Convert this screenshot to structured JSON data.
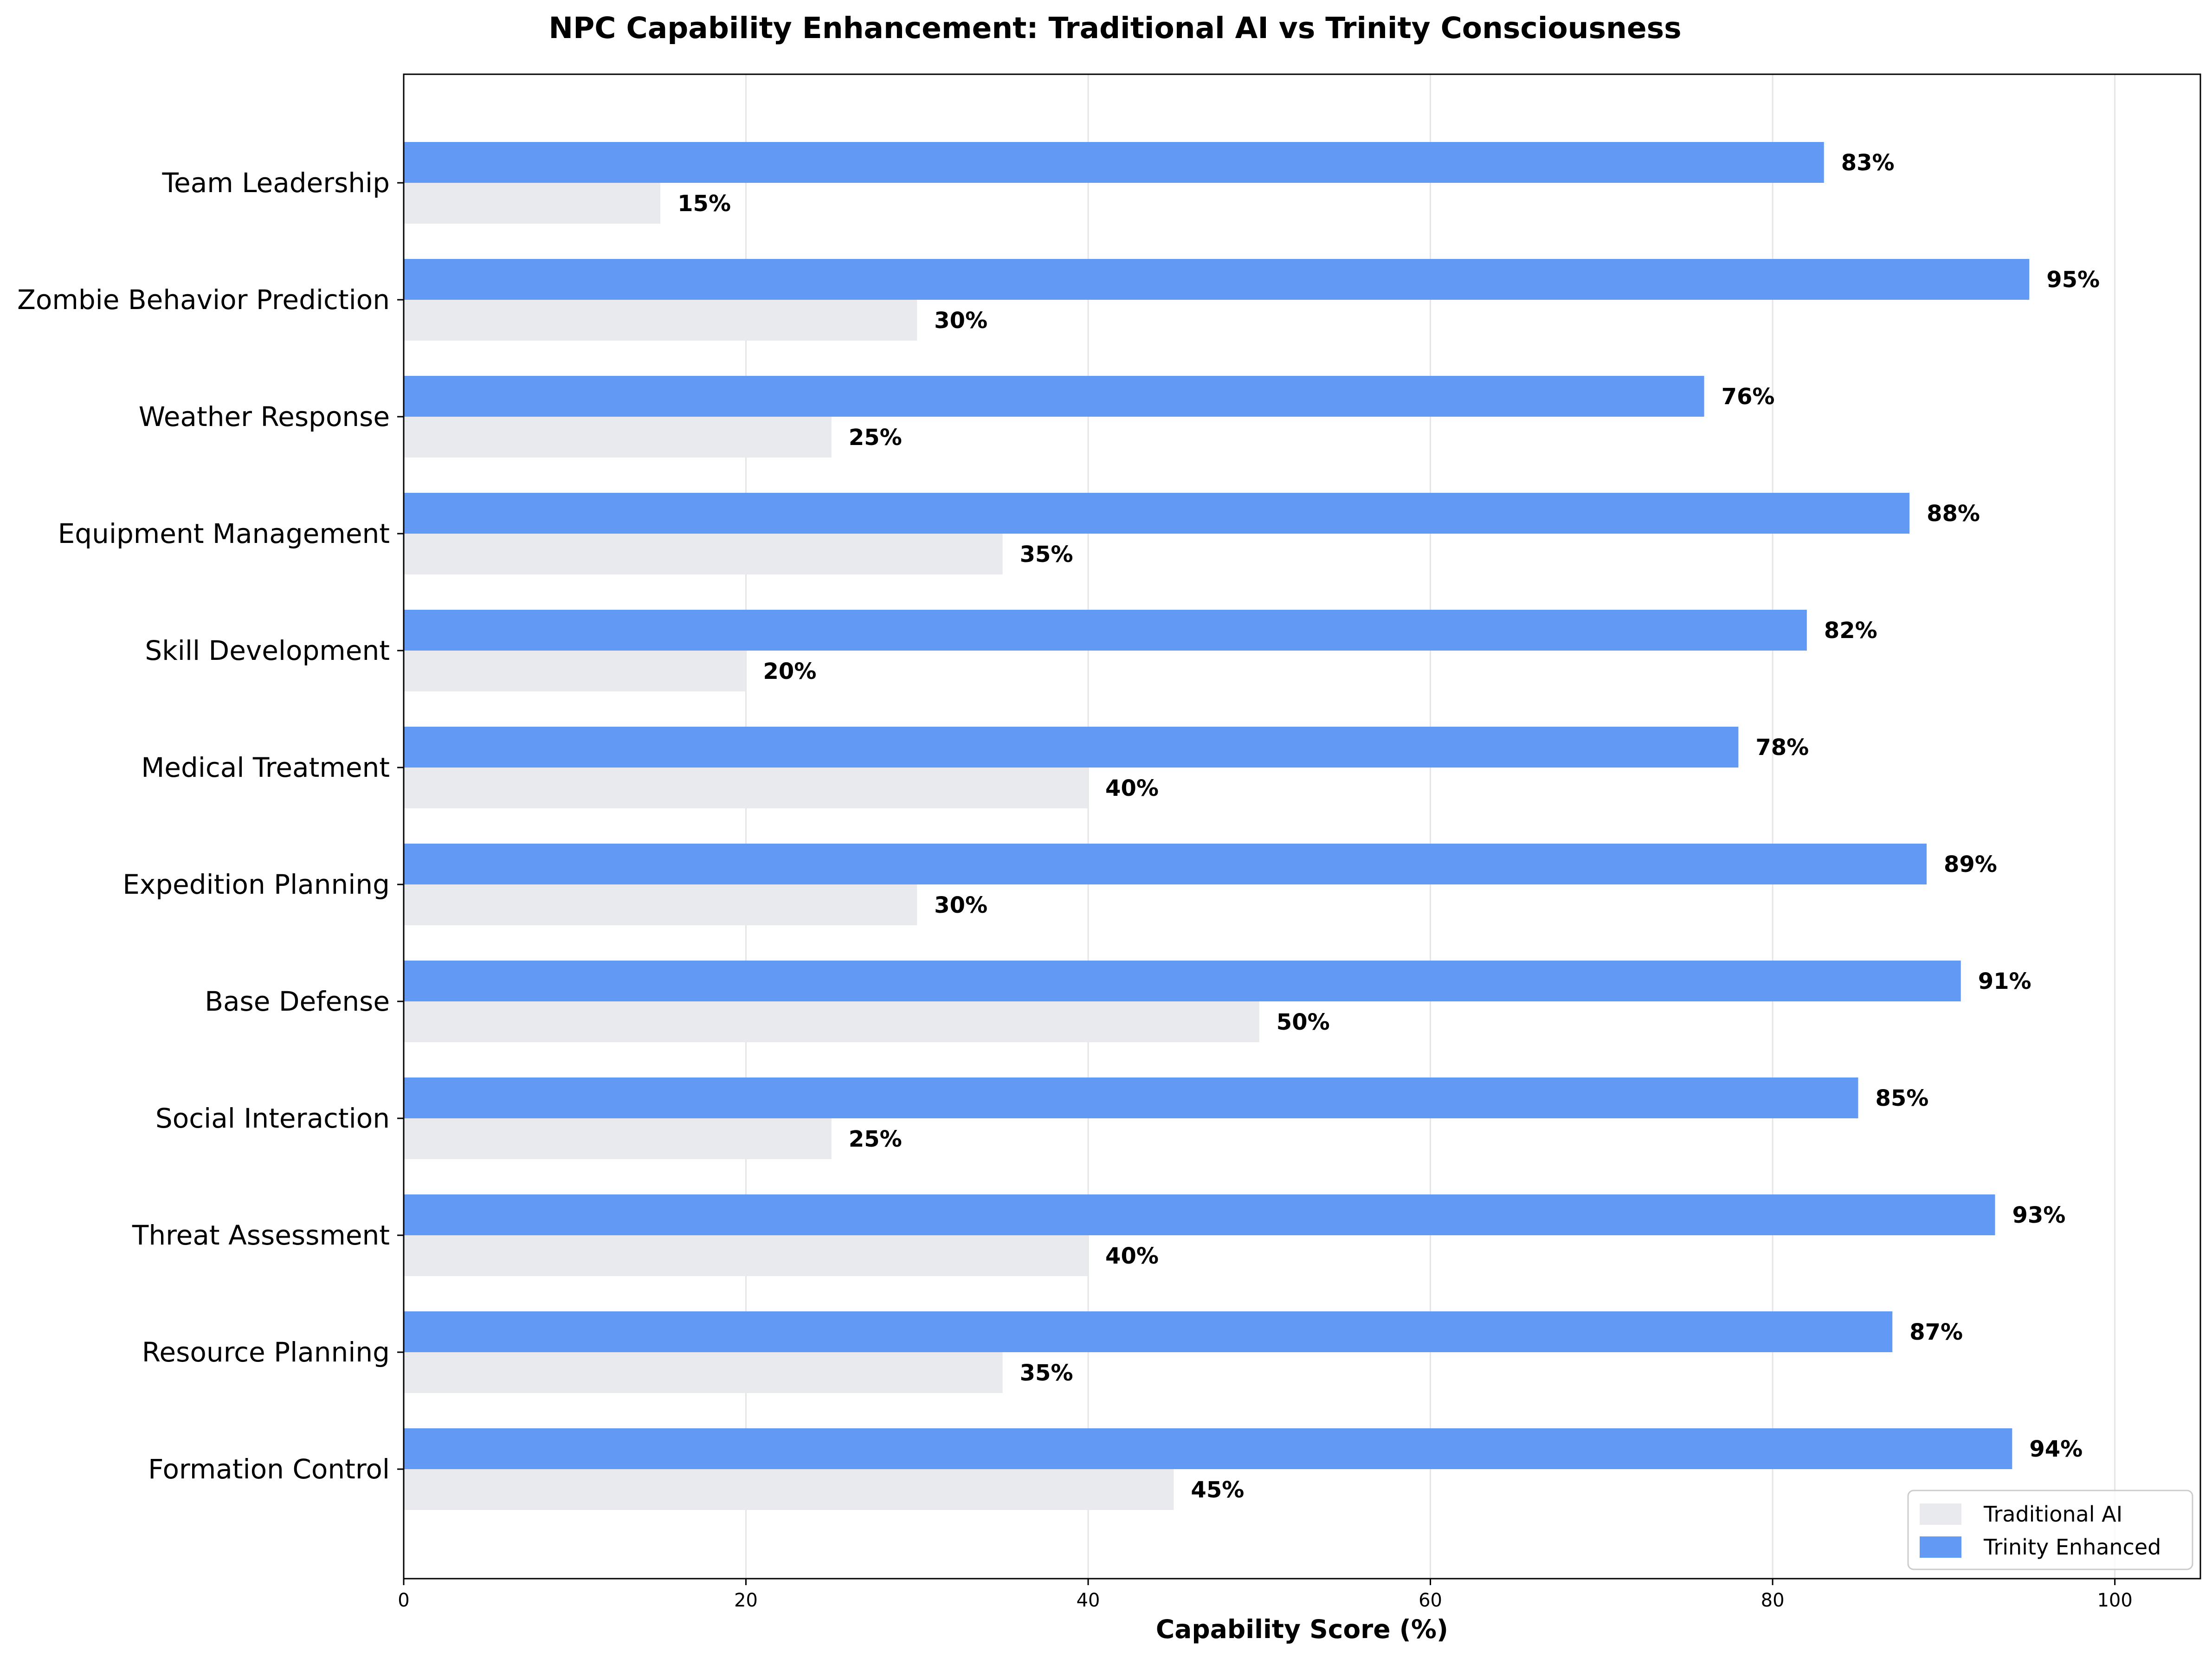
{
  "chart_data": {
    "type": "bar",
    "orientation": "horizontal",
    "title": "NPC Capability Enhancement: Traditional AI vs Trinity Consciousness",
    "xlabel": "Capability Score (%)",
    "ylabel": "",
    "xlim": [
      0,
      105
    ],
    "xticks": [
      0,
      20,
      40,
      60,
      80,
      100
    ],
    "grid": "vertical",
    "legend_position": "bottom-right",
    "value_suffix": "%",
    "categories": [
      "Formation Control",
      "Resource Planning",
      "Threat Assessment",
      "Social Interaction",
      "Base Defense",
      "Expedition Planning",
      "Medical Treatment",
      "Skill Development",
      "Equipment Management",
      "Weather Response",
      "Zombie Behavior Prediction",
      "Team Leadership"
    ],
    "series": [
      {
        "name": "Traditional AI",
        "color": "#e8eaed",
        "values": [
          45,
          35,
          40,
          25,
          50,
          30,
          40,
          20,
          35,
          25,
          30,
          15
        ]
      },
      {
        "name": "Trinity Enhanced",
        "color": "#6199f5",
        "values": [
          94,
          87,
          93,
          85,
          91,
          89,
          78,
          82,
          88,
          76,
          95,
          83
        ]
      }
    ]
  }
}
